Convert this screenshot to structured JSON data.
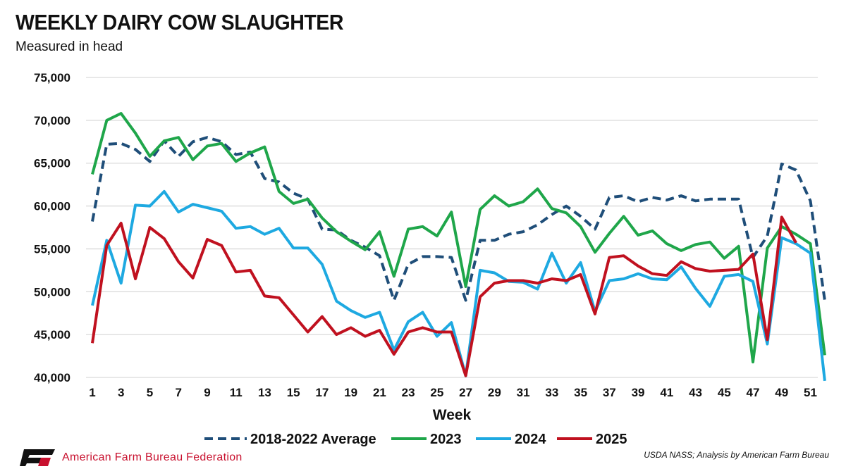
{
  "chart_data": {
    "type": "line",
    "title": "WEEKLY DAIRY COW SLAUGHTER",
    "subtitle": "Measured in head",
    "xlabel": "Week",
    "ylabel": "",
    "ylim": [
      40000,
      75000
    ],
    "yticks": [
      40000,
      45000,
      50000,
      55000,
      60000,
      65000,
      70000,
      75000
    ],
    "ytick_labels": [
      "40,000",
      "45,000",
      "50,000",
      "55,000",
      "60,000",
      "65,000",
      "70,000",
      "75,000"
    ],
    "xticks": [
      1,
      3,
      5,
      7,
      9,
      11,
      13,
      15,
      17,
      19,
      21,
      23,
      25,
      27,
      29,
      31,
      33,
      35,
      37,
      39,
      41,
      43,
      45,
      47,
      49,
      51
    ],
    "grid": true,
    "legend_position": "bottom",
    "series": [
      {
        "name": "2018-2022 Average",
        "color": "#1f4e79",
        "dashed": true,
        "values": [
          58200,
          67200,
          67300,
          66600,
          65200,
          67600,
          65800,
          67500,
          68000,
          67500,
          66000,
          66300,
          63200,
          62800,
          61500,
          60800,
          57300,
          57200,
          56000,
          55200,
          54200,
          49000,
          53200,
          54100,
          54100,
          54000,
          49000,
          56000,
          56000,
          56700,
          57000,
          57800,
          59000,
          60000,
          58800,
          57300,
          61000,
          61200,
          60500,
          61000,
          60700,
          61200,
          60600,
          60800,
          60800,
          60800,
          54000,
          56500,
          64900,
          64200,
          60600,
          49000
        ]
      },
      {
        "name": "2023",
        "color": "#1fa64a",
        "dashed": false,
        "values": [
          63700,
          70000,
          70800,
          68500,
          65800,
          67600,
          68000,
          65400,
          67000,
          67300,
          65200,
          66200,
          66900,
          61700,
          60300,
          60800,
          58600,
          57000,
          55900,
          54900,
          57000,
          51800,
          57300,
          57600,
          56500,
          59300,
          50600,
          59600,
          61200,
          60000,
          60500,
          62000,
          59700,
          59200,
          57600,
          54600,
          56800,
          58800,
          56600,
          57100,
          55600,
          54800,
          55500,
          55800,
          53900,
          55300,
          41800,
          55100,
          57600,
          56700,
          55600,
          42600
        ]
      },
      {
        "name": "2024",
        "color": "#1ea9e1",
        "dashed": false,
        "values": [
          48400,
          56000,
          51000,
          60100,
          60000,
          61700,
          59300,
          60200,
          59800,
          59400,
          57400,
          57600,
          56700,
          57400,
          55100,
          55100,
          53200,
          48900,
          47800,
          47000,
          47600,
          43200,
          46500,
          47600,
          44800,
          46400,
          40200,
          52500,
          52200,
          51200,
          51100,
          50300,
          54500,
          51000,
          53400,
          47700,
          51300,
          51500,
          52100,
          51500,
          51400,
          52900,
          50400,
          48300,
          51800,
          52000,
          51200,
          43900,
          56300,
          55600,
          54500,
          39600
        ]
      },
      {
        "name": "2025",
        "color": "#c0111f",
        "dashed": false,
        "values": [
          44000,
          55400,
          58000,
          51500,
          57500,
          56200,
          53500,
          51600,
          56100,
          55400,
          52300,
          52500,
          49500,
          49300,
          47300,
          45300,
          47100,
          45000,
          45800,
          44800,
          45500,
          42700,
          45300,
          45800,
          45300,
          45300,
          40200,
          49400,
          51000,
          51300,
          51300,
          51000,
          51500,
          51300,
          52000,
          47400,
          54000,
          54200,
          53000,
          52100,
          51900,
          53500,
          52700,
          52400,
          52500,
          52600,
          54400,
          44400,
          58700,
          55700
        ]
      }
    ]
  },
  "footer": {
    "organization": "American Farm Bureau Federation",
    "logo_text": "FB",
    "source": "USDA NASS; Analysis by American Farm Bureau"
  }
}
